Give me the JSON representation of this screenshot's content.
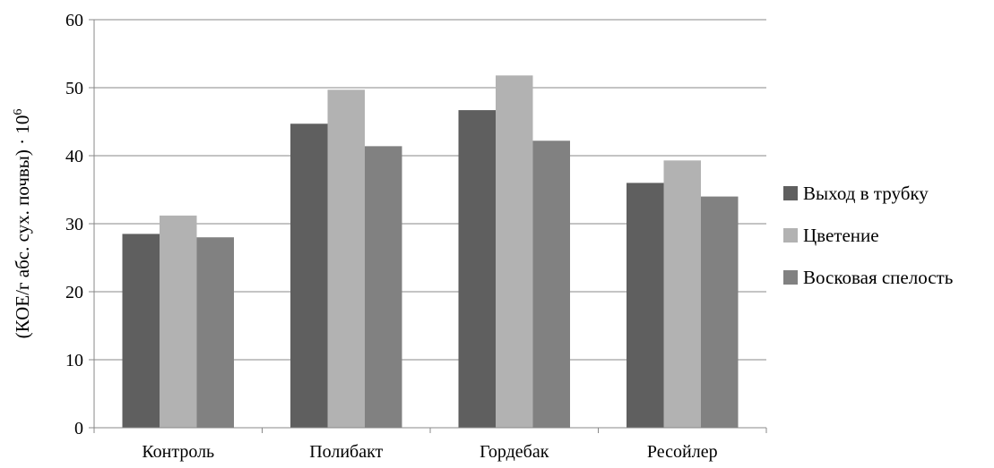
{
  "chart_data": {
    "type": "bar",
    "categories": [
      "Контроль",
      "Полибакт",
      "Гордебак",
      "Ресойлер"
    ],
    "series": [
      {
        "name": "Выход в трубку",
        "values": [
          28.5,
          44.7,
          46.7,
          36.0
        ],
        "color": "#5f5f5f"
      },
      {
        "name": "Цветение",
        "values": [
          31.2,
          49.7,
          51.8,
          39.3
        ],
        "color": "#b2b2b2"
      },
      {
        "name": "Восковая спелость",
        "values": [
          28.0,
          41.4,
          42.2,
          34.0
        ],
        "color": "#818181"
      }
    ],
    "title": "",
    "xlabel": "",
    "ylabel": "(КОЕ/г абс. сух. почвы) · 10",
    "ylabel_superscript": "6",
    "ylim": [
      0,
      60
    ],
    "yticks": [
      "0",
      "10",
      "20",
      "30",
      "40",
      "50",
      "60"
    ],
    "grid": true,
    "legend_position": "right"
  }
}
